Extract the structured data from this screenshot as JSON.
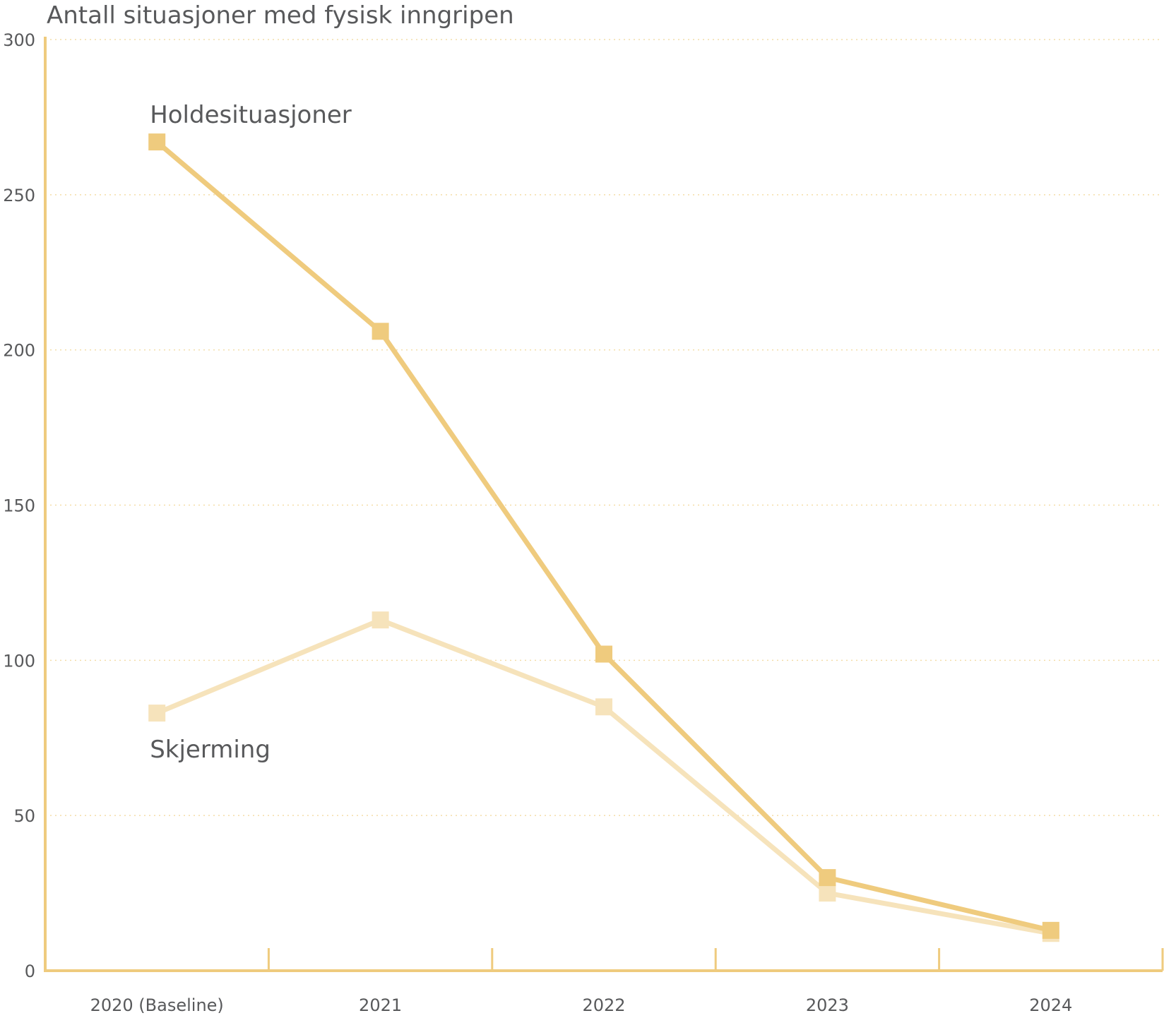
{
  "chart_data": {
    "type": "line",
    "title": "Antall situasjoner med fysisk inngripen",
    "xlabel": "",
    "ylabel": "Antall situasjoner med fysisk inngripen",
    "categories": [
      "2020 (Baseline)",
      "2021",
      "2022",
      "2023",
      "2024"
    ],
    "ylim": [
      0,
      300
    ],
    "yticks": [
      0,
      50,
      100,
      150,
      200,
      250,
      300
    ],
    "grid": true,
    "legend": "direct labels",
    "series": [
      {
        "name": "Holdesituasjoner",
        "values": [
          267,
          206,
          102,
          30,
          13
        ],
        "color": "#efcb7e",
        "marker": "square"
      },
      {
        "name": "Skjerming",
        "values": [
          83,
          113,
          85,
          25,
          12
        ],
        "color": "#f6e3bb",
        "marker": "square"
      }
    ],
    "colors": {
      "axis": "#efcb7e",
      "grid": "#f4dda8",
      "text": "#58595b"
    }
  }
}
